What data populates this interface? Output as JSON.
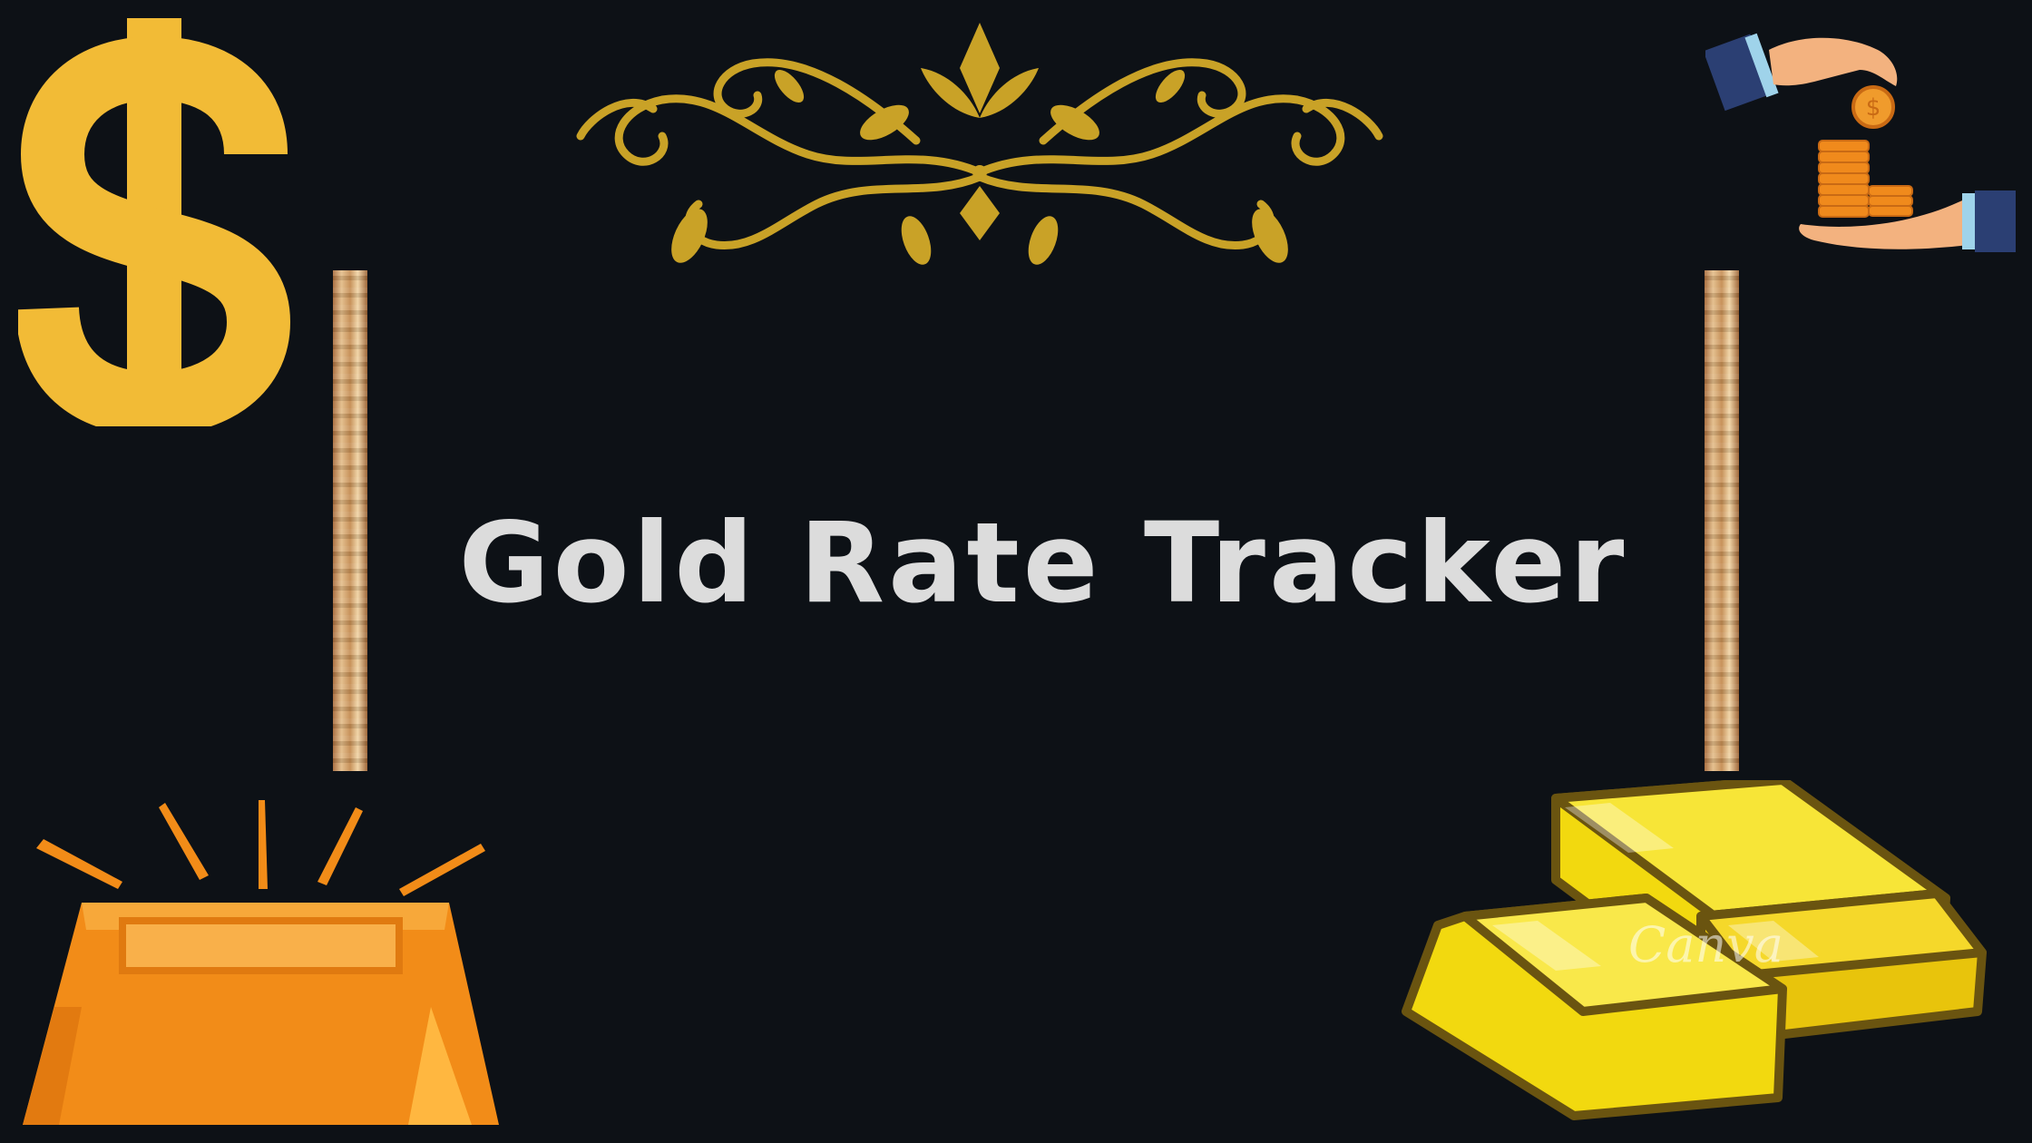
{
  "title": "Gold Rate Tracker",
  "watermark": "Canva",
  "colors": {
    "background": "#0d1116",
    "title": "#dcdcdc",
    "dollar": "#f2bb36",
    "ornament_gold": "#c9a227",
    "bar_orange": "#f28c18",
    "bar_yellow": "#f2d90f"
  },
  "icons": {
    "top_left": "dollar-sign-icon",
    "top_center": "gold-ornament-icon",
    "top_right": "hands-coins-icon",
    "bottom_left": "gold-bar-icon",
    "bottom_right": "gold-bars-stack-icon"
  }
}
